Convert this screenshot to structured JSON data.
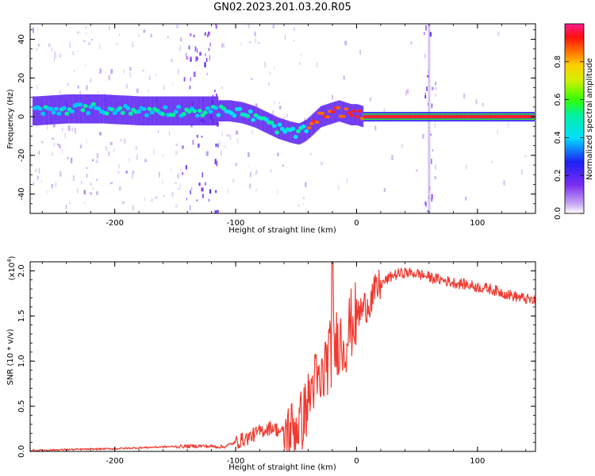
{
  "title": "GN02.2023.201.03.20.R05",
  "colors": {
    "spectrogram_low": "#7a2df0",
    "spectrogram_mid": "#00e0ff",
    "spectrogram_high": "#ff2020",
    "snr_line": "#f03a30"
  },
  "chart_data": [
    {
      "type": "heatmap",
      "xlabel": "Height of straight line (km)",
      "ylabel": "Frequency (Hz)",
      "xlim": [
        -270,
        148
      ],
      "ylim": [
        -50,
        48
      ],
      "xticks": [
        -200,
        -100,
        0,
        100
      ],
      "yticks": [
        -40,
        -20,
        0,
        20,
        40
      ],
      "grid": false,
      "ridge": {
        "x": [
          -265,
          -240,
          -210,
          -180,
          -150,
          -125,
          -115,
          -105,
          -95,
          -85,
          -75,
          -65,
          -55,
          -48,
          -42,
          -35,
          -30,
          -25,
          -20,
          -15,
          -10,
          -5,
          0,
          5,
          10,
          20,
          40,
          60,
          80,
          100,
          120,
          148
        ],
        "y": [
          3,
          4,
          4,
          3,
          3,
          3,
          3,
          3,
          2,
          0,
          -3,
          -6,
          -8,
          -9,
          -7,
          -3,
          0,
          1,
          2,
          3,
          2,
          1,
          1,
          0,
          0,
          0,
          0,
          0,
          0,
          0,
          0,
          0
        ]
      },
      "colorbar": {
        "label": "Normalized spectral amplitude",
        "range": [
          0,
          1
        ],
        "ticks": [
          "0.0",
          "0.2",
          "0.4",
          "0.6",
          "0.8"
        ]
      }
    },
    {
      "type": "line",
      "xlabel": "Height of straight line (km)",
      "ylabel": "SNR (10 * v/v)",
      "multiplier_label": "(x10",
      "multiplier_exp": "4",
      "xlim": [
        -270,
        148
      ],
      "ylim": [
        0,
        2.1
      ],
      "xticks": [
        -200,
        -100,
        0,
        100
      ],
      "yticks": [
        "0.0",
        "0.5",
        "1.0",
        "1.5",
        "2.0"
      ],
      "grid": false,
      "series": [
        {
          "x": [
            -270,
            -240,
            -200,
            -160,
            -130,
            -110,
            -100,
            -90,
            -80,
            -70,
            -60,
            -50,
            -45,
            -40,
            -35,
            -30,
            -25,
            -20,
            -15,
            -10,
            -5,
            0,
            10,
            20,
            30,
            40,
            50,
            60,
            70,
            80,
            90,
            100,
            110,
            120,
            130,
            140,
            148
          ],
          "y": [
            0.01,
            0.02,
            0.03,
            0.05,
            0.06,
            0.05,
            0.1,
            0.15,
            0.22,
            0.27,
            0.2,
            0.28,
            0.35,
            0.55,
            0.8,
            0.7,
            1.0,
            1.1,
            1.25,
            1.2,
            1.4,
            1.5,
            1.65,
            1.85,
            1.95,
            1.98,
            1.97,
            1.93,
            1.9,
            1.87,
            1.85,
            1.82,
            1.8,
            1.76,
            1.72,
            1.69,
            1.66
          ]
        }
      ]
    }
  ]
}
